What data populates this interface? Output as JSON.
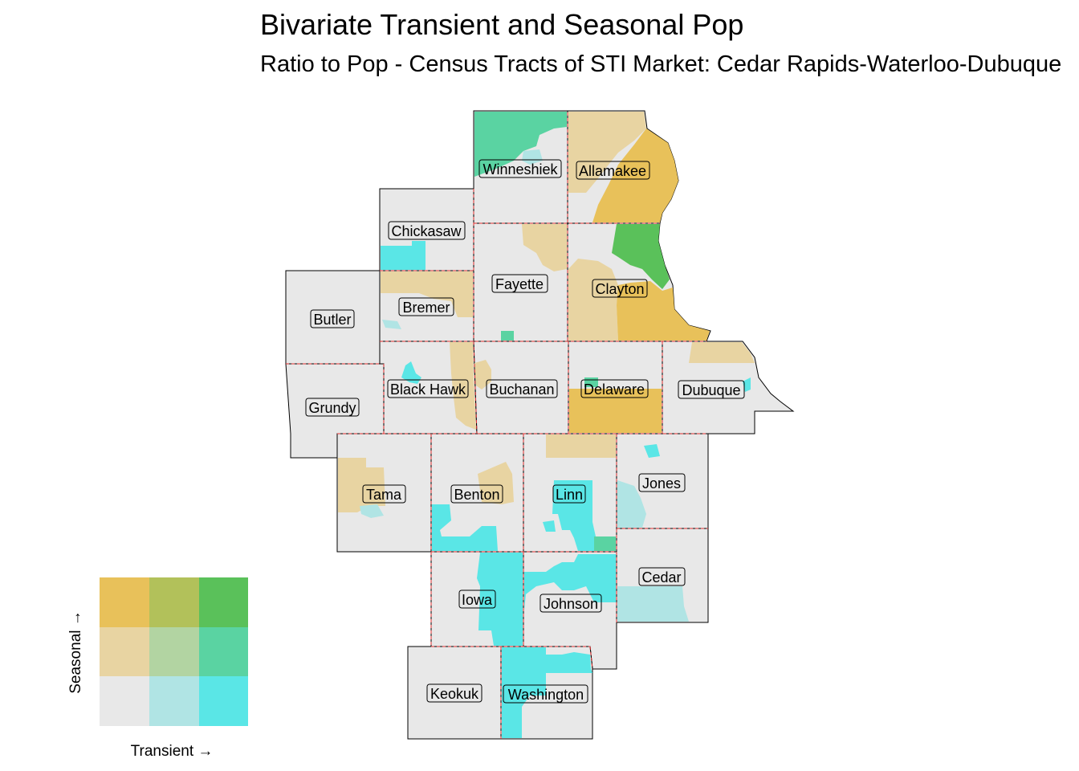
{
  "title": "Bivariate Transient and Seasonal Pop",
  "subtitle": "Ratio to Pop - Census Tracts of STI Market: Cedar Rapids-Waterloo-Dubuque",
  "legend": {
    "x_label": "Transient →",
    "y_label": "Seasonal →",
    "palette": [
      [
        "#e8e8e8",
        "#b0e4e4",
        "#5ae6e6"
      ],
      [
        "#e8d4a2",
        "#b2d4a2",
        "#5ad3a2"
      ],
      [
        "#e8c15a",
        "#b2c15a",
        "#5ac15a"
      ]
    ]
  },
  "colors": {
    "base": "#e8e8e8",
    "light_teal": "#b0e4e4",
    "teal": "#5ae6e6",
    "tan": "#e8d4a2",
    "mid_green": "#5ad3a2",
    "gold": "#e8c15a",
    "green": "#5ac15a",
    "boundary_dashed": "#e03030",
    "outline": "#000000"
  },
  "counties": [
    {
      "name": "Winneshiek"
    },
    {
      "name": "Allamakee"
    },
    {
      "name": "Chickasaw"
    },
    {
      "name": "Fayette"
    },
    {
      "name": "Clayton"
    },
    {
      "name": "Butler"
    },
    {
      "name": "Bremer"
    },
    {
      "name": "Black Hawk"
    },
    {
      "name": "Buchanan"
    },
    {
      "name": "Delaware"
    },
    {
      "name": "Dubuque"
    },
    {
      "name": "Grundy"
    },
    {
      "name": "Tama"
    },
    {
      "name": "Benton"
    },
    {
      "name": "Linn"
    },
    {
      "name": "Jones"
    },
    {
      "name": "Cedar"
    },
    {
      "name": "Iowa"
    },
    {
      "name": "Johnson"
    },
    {
      "name": "Keokuk"
    },
    {
      "name": "Washington"
    }
  ]
}
